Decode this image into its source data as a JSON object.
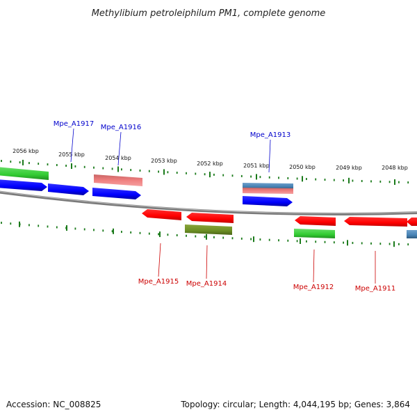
{
  "title": "Methylibium petroleiphilum PM1, complete genome",
  "footer": {
    "accession": "Accession: NC_008825",
    "topology": "Topology: circular; Length: 4,044,195 bp; Genes: 3,864"
  },
  "colors": {
    "forward_blue": "#0000ff",
    "green": "#33cc33",
    "salmon": "#f08080",
    "red": "#ff0000",
    "olive": "#6b8e23",
    "steel": "#4682b4",
    "tick": "#1a7a1a",
    "backbone": "#888888",
    "label_blue": "#0000cc",
    "label_red": "#cc0000"
  },
  "ticks": [
    {
      "label": "2056 kbp"
    },
    {
      "label": "2055 kbp"
    },
    {
      "label": "2054 kbp"
    },
    {
      "label": "2053 kbp"
    },
    {
      "label": "2052 kbp"
    },
    {
      "label": "2051 kbp"
    },
    {
      "label": "2050 kbp"
    },
    {
      "label": "2049 kbp"
    },
    {
      "label": "2048 kbp"
    }
  ],
  "gene_labels": [
    {
      "label": "Mpe_A1917",
      "strand": "top"
    },
    {
      "label": "Mpe_A1916",
      "strand": "top"
    },
    {
      "label": "Mpe_A1913",
      "strand": "top"
    },
    {
      "label": "Mpe_A1915",
      "strand": "bottom"
    },
    {
      "label": "Mpe_A1914",
      "strand": "bottom"
    },
    {
      "label": "Mpe_A1912",
      "strand": "bottom"
    },
    {
      "label": "Mpe_A1911",
      "strand": "bottom"
    }
  ]
}
